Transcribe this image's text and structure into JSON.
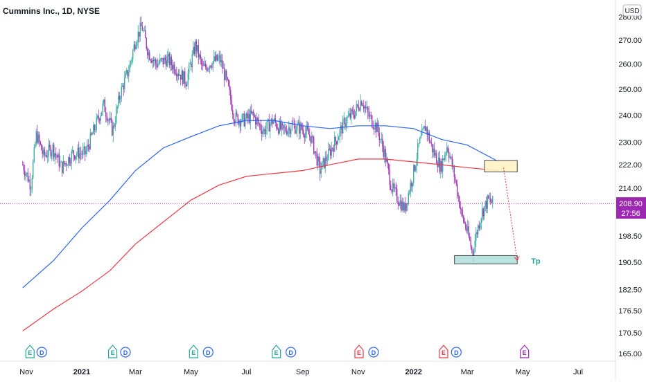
{
  "header": {
    "title": "Cummins Inc., 1D, NYSE",
    "currency": "USD"
  },
  "price_tag": {
    "price": "208.90",
    "countdown": "27:56",
    "color": "#9c27b0"
  },
  "annotations": {
    "target_label": "Tp"
  },
  "colors": {
    "up": "#26a69a",
    "down": "#9c27b0",
    "ma_fast": "#2962ff",
    "ma_slow": "#f23645",
    "entry_zone": "#fff3c4",
    "target_zone": "#b2dfdb"
  },
  "chart_data": {
    "type": "candlestick",
    "title": "Cummins Inc., 1D, NYSE",
    "y_ticks": [
      "280.00",
      "270.00",
      "260.00",
      "250.00",
      "240.00",
      "230.00",
      "222.00",
      "214.00",
      "198.50",
      "190.50",
      "182.50",
      "176.50",
      "170.50",
      "165.00"
    ],
    "x_ticks": [
      "Nov",
      "2021",
      "Mar",
      "May",
      "Jul",
      "Sep",
      "Nov",
      "2022",
      "Mar",
      "May",
      "Jul"
    ],
    "ylim": [
      163,
      283
    ],
    "y_scale": "log",
    "last_price": 208.9,
    "price_path": [
      [
        "2020-10-28",
        222
      ],
      [
        "2020-11-06",
        215
      ],
      [
        "2020-11-12",
        233
      ],
      [
        "2020-11-20",
        225
      ],
      [
        "2020-11-30",
        228
      ],
      [
        "2020-12-10",
        221
      ],
      [
        "2020-12-22",
        226
      ],
      [
        "2021-01-05",
        226
      ],
      [
        "2021-01-15",
        235
      ],
      [
        "2021-01-25",
        244
      ],
      [
        "2021-02-04",
        234
      ],
      [
        "2021-02-12",
        248
      ],
      [
        "2021-02-22",
        258
      ],
      [
        "2021-03-01",
        270
      ],
      [
        "2021-03-08",
        276
      ],
      [
        "2021-03-15",
        265
      ],
      [
        "2021-03-24",
        260
      ],
      [
        "2021-04-05",
        262
      ],
      [
        "2021-04-15",
        258
      ],
      [
        "2021-04-26",
        253
      ],
      [
        "2021-05-06",
        268
      ],
      [
        "2021-05-14",
        258
      ],
      [
        "2021-05-24",
        261
      ],
      [
        "2021-06-02",
        262
      ],
      [
        "2021-06-10",
        252
      ],
      [
        "2021-06-18",
        239
      ],
      [
        "2021-06-28",
        238
      ],
      [
        "2021-07-08",
        240
      ],
      [
        "2021-07-20",
        234
      ],
      [
        "2021-07-30",
        238
      ],
      [
        "2021-08-10",
        234
      ],
      [
        "2021-08-20",
        236
      ],
      [
        "2021-08-31",
        235
      ],
      [
        "2021-09-10",
        232
      ],
      [
        "2021-09-20",
        220
      ],
      [
        "2021-09-30",
        226
      ],
      [
        "2021-10-08",
        231
      ],
      [
        "2021-10-18",
        238
      ],
      [
        "2021-10-28",
        241
      ],
      [
        "2021-11-05",
        246
      ],
      [
        "2021-11-12",
        240
      ],
      [
        "2021-11-22",
        235
      ],
      [
        "2021-11-30",
        226
      ],
      [
        "2021-12-08",
        214
      ],
      [
        "2021-12-16",
        210
      ],
      [
        "2021-12-22",
        207
      ],
      [
        "2021-12-31",
        218
      ],
      [
        "2022-01-07",
        229
      ],
      [
        "2022-01-14",
        236
      ],
      [
        "2022-01-21",
        228
      ],
      [
        "2022-01-31",
        221
      ],
      [
        "2022-02-07",
        229
      ],
      [
        "2022-02-15",
        218
      ],
      [
        "2022-02-23",
        205
      ],
      [
        "2022-03-01",
        200
      ],
      [
        "2022-03-07",
        193
      ],
      [
        "2022-03-10",
        198
      ],
      [
        "2022-03-17",
        206
      ],
      [
        "2022-03-24",
        210
      ],
      [
        "2022-03-30",
        208.9
      ]
    ],
    "series": [
      {
        "type": "line",
        "points": [
          [
            "2020-10-28",
            183
          ],
          [
            "2020-12-01",
            191
          ],
          [
            "2021-01-01",
            201
          ],
          [
            "2021-02-01",
            210
          ],
          [
            "2021-03-01",
            220
          ],
          [
            "2021-04-01",
            228
          ],
          [
            "2021-05-01",
            232
          ],
          [
            "2021-06-01",
            236
          ],
          [
            "2021-07-01",
            238
          ],
          [
            "2021-08-01",
            238
          ],
          [
            "2021-09-01",
            236
          ],
          [
            "2021-10-01",
            235
          ],
          [
            "2021-11-01",
            236
          ],
          [
            "2021-12-01",
            236
          ],
          [
            "2022-01-01",
            235
          ],
          [
            "2022-02-01",
            231
          ],
          [
            "2022-03-01",
            229
          ],
          [
            "2022-04-05",
            223
          ]
        ]
      },
      {
        "type": "line",
        "points": [
          [
            "2020-10-28",
            171
          ],
          [
            "2020-12-01",
            177
          ],
          [
            "2021-01-01",
            182
          ],
          [
            "2021-02-01",
            188
          ],
          [
            "2021-03-01",
            196
          ],
          [
            "2021-04-01",
            203
          ],
          [
            "2021-05-01",
            210
          ],
          [
            "2021-06-01",
            215
          ],
          [
            "2021-07-01",
            218
          ],
          [
            "2021-08-01",
            219
          ],
          [
            "2021-09-01",
            220
          ],
          [
            "2021-10-01",
            222
          ],
          [
            "2021-11-01",
            224
          ],
          [
            "2021-12-01",
            224
          ],
          [
            "2022-01-01",
            223
          ],
          [
            "2022-02-01",
            222
          ],
          [
            "2022-03-01",
            221
          ],
          [
            "2022-04-05",
            220
          ]
        ]
      }
    ],
    "zones": [
      {
        "x0": "2022-03-20",
        "x1": "2022-04-25",
        "y0": 219.5,
        "y1": 223.5,
        "role": "entry"
      },
      {
        "x0": "2022-02-15",
        "x1": "2022-04-25",
        "y0": 190,
        "y1": 192.5,
        "role": "target"
      }
    ],
    "projection": {
      "from": [
        "2022-04-10",
        221
      ],
      "to": [
        "2022-04-25",
        191
      ]
    },
    "events": [
      {
        "date": "2020-11-05",
        "label": "E",
        "kind": "earnings"
      },
      {
        "date": "2020-11-18",
        "label": "D",
        "kind": "dividend"
      },
      {
        "date": "2021-02-04",
        "label": "E",
        "kind": "earnings"
      },
      {
        "date": "2021-02-18",
        "label": "D",
        "kind": "dividend"
      },
      {
        "date": "2021-05-04",
        "label": "E",
        "kind": "earnings"
      },
      {
        "date": "2021-05-20",
        "label": "D",
        "kind": "dividend"
      },
      {
        "date": "2021-08-03",
        "label": "E",
        "kind": "earnings"
      },
      {
        "date": "2021-08-19",
        "label": "D",
        "kind": "dividend"
      },
      {
        "date": "2021-11-02",
        "label": "E",
        "kind": "earnings",
        "negative": true
      },
      {
        "date": "2021-11-18",
        "label": "D",
        "kind": "dividend"
      },
      {
        "date": "2022-02-03",
        "label": "E",
        "kind": "earnings",
        "negative": true
      },
      {
        "date": "2022-02-17",
        "label": "D",
        "kind": "dividend"
      },
      {
        "date": "2022-05-03",
        "label": "E",
        "kind": "earnings",
        "future": true
      }
    ]
  }
}
